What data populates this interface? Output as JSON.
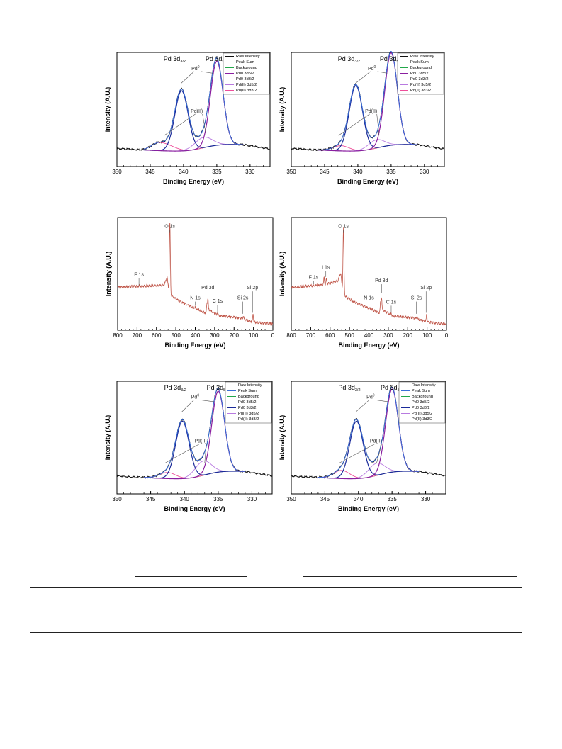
{
  "chart_data": [
    {
      "id": "p1",
      "type": "line",
      "kind": "xps_pd3d",
      "ylabel": "Intensity (A.U.)",
      "xlabel": "Binding Energy (eV)",
      "xlim": [
        350,
        327
      ],
      "ylim": [
        0,
        1.1
      ],
      "xticks": [
        350,
        345,
        340,
        335,
        330
      ],
      "base_left": 0.28,
      "base_right": 0.1,
      "peak_labels": [
        "Pd 3d",
        "3/2",
        "Pd 3d",
        "5/2"
      ],
      "annotations": [
        {
          "label": "Pd",
          "sup": "0",
          "at": [
            338.2,
            0.93
          ],
          "targets": [
            [
              340.4,
              0.8
            ],
            [
              335.6,
              0.9
            ]
          ]
        },
        {
          "label": "Pd(II)",
          "at": [
            338.0,
            0.52
          ],
          "targets": [
            [
              342.9,
              0.3
            ],
            [
              336.6,
              0.3
            ]
          ]
        }
      ],
      "peaks": {
        "pd0_52": {
          "x0": 335.0,
          "h": 0.81,
          "w": 0.95
        },
        "pd0_32": {
          "x0": 340.3,
          "h": 0.58,
          "w": 1.0
        },
        "pd2_52": {
          "x0": 337.0,
          "h": 0.1,
          "w": 1.3
        },
        "pd2_32": {
          "x0": 342.4,
          "h": 0.05,
          "w": 1.3
        },
        "sat": {
          "x0": 344.0,
          "h": 0.05,
          "w": 1.0
        }
      },
      "legend": [
        "Raw Intensity",
        "Peak Sum",
        "Background",
        "Pd0 3d5/2",
        "Pd0 3d3/2",
        "Pd(II) 3d5/2",
        "Pd(II) 3d3/2"
      ]
    },
    {
      "id": "p2",
      "type": "line",
      "kind": "xps_pd3d",
      "ylabel": "Intensity (A.U.)",
      "xlabel": "Binding Energy (eV)",
      "xlim": [
        350,
        327
      ],
      "ylim": [
        0,
        1.1
      ],
      "xticks": [
        350,
        345,
        340,
        335,
        330
      ],
      "base_left": 0.28,
      "base_right": 0.1,
      "peak_labels": [
        "Pd 3d",
        "3/2",
        "Pd 3d",
        "5/2"
      ],
      "annotations": [
        {
          "label": "Pd",
          "sup": "0",
          "at": [
            337.9,
            0.93
          ],
          "targets": [
            [
              340.4,
              0.8
            ],
            [
              335.6,
              0.9
            ]
          ]
        },
        {
          "label": "Pd(II)",
          "at": [
            338.0,
            0.52
          ],
          "targets": [
            [
              342.9,
              0.3
            ],
            [
              336.8,
              0.3
            ]
          ]
        }
      ],
      "peaks": {
        "pd0_52": {
          "x0": 335.0,
          "h": 0.89,
          "w": 0.95
        },
        "pd0_32": {
          "x0": 340.3,
          "h": 0.63,
          "w": 1.0
        },
        "pd2_52": {
          "x0": 337.2,
          "h": 0.08,
          "w": 1.2
        },
        "pd2_32": {
          "x0": 342.5,
          "h": 0.05,
          "w": 1.2
        },
        "sat": {
          "x0": 344.0,
          "h": 0.0,
          "w": 1.0
        }
      },
      "legend": [
        "Raw Intensity",
        "Peak Sum",
        "Background",
        "Pd0 3d5/2",
        "Pd0 3d3/2",
        "Pd(II) 3d5/2",
        "Pd(II) 3d3/2"
      ]
    },
    {
      "id": "p3",
      "type": "line",
      "kind": "xps_survey",
      "ylabel": "Intensity (A.U.)",
      "xlabel": "Binding Energy (eV)",
      "xlim": [
        800,
        0
      ],
      "ylim": [
        0,
        1.1
      ],
      "xticks": [
        800,
        700,
        600,
        500,
        400,
        300,
        200,
        100,
        0
      ],
      "color": "#c0574a",
      "steps": [
        [
          800,
          0.42
        ],
        [
          560,
          0.44
        ],
        [
          545,
          0.52
        ],
        [
          535,
          0.35
        ],
        [
          480,
          0.28
        ],
        [
          420,
          0.23
        ],
        [
          337,
          0.16
        ],
        [
          330,
          0.2
        ],
        [
          280,
          0.14
        ],
        [
          170,
          0.12
        ],
        [
          100,
          0.08
        ],
        [
          0,
          0.06
        ]
      ],
      "lines": [
        {
          "x": 531,
          "h": 0.7,
          "w": 2.5
        },
        {
          "x": 335,
          "h": 0.14,
          "w": 2.0
        },
        {
          "x": 340,
          "h": 0.1,
          "w": 2.0
        },
        {
          "x": 285,
          "h": 0.03,
          "w": 2.0
        },
        {
          "x": 152,
          "h": 0.03,
          "w": 2.0
        },
        {
          "x": 102,
          "h": 0.08,
          "w": 2.0
        },
        {
          "x": 400,
          "h": 0.01,
          "w": 2.0
        },
        {
          "x": 686,
          "h": 0.01,
          "w": 2.0
        }
      ],
      "labels": [
        {
          "text": "O 1s",
          "x": 531,
          "y": 1.0,
          "line_to": 0.95
        },
        {
          "text": "F 1s",
          "x": 690,
          "y": 0.53,
          "line_to": 0.44
        },
        {
          "text": "Pd 3d",
          "x": 335,
          "y": 0.4,
          "line_to": 0.32
        },
        {
          "text": "N 1s",
          "x": 400,
          "y": 0.3,
          "line_to": 0.24
        },
        {
          "text": "C 1s",
          "x": 285,
          "y": 0.27,
          "line_to": 0.17
        },
        {
          "text": "Si 2s",
          "x": 155,
          "y": 0.3,
          "line_to": 0.16
        },
        {
          "text": "Si 2p",
          "x": 105,
          "y": 0.4,
          "line_to": 0.17
        }
      ]
    },
    {
      "id": "p4",
      "type": "line",
      "kind": "xps_survey",
      "ylabel": "Intensity (A.U.)",
      "xlabel": "Binding Energy (eV)",
      "xlim": [
        800,
        0
      ],
      "ylim": [
        0,
        1.1
      ],
      "xticks": [
        800,
        700,
        600,
        500,
        400,
        300,
        200,
        100,
        0
      ],
      "color": "#c0574a",
      "steps": [
        [
          800,
          0.42
        ],
        [
          640,
          0.44
        ],
        [
          560,
          0.48
        ],
        [
          545,
          0.56
        ],
        [
          535,
          0.35
        ],
        [
          480,
          0.28
        ],
        [
          420,
          0.23
        ],
        [
          337,
          0.16
        ],
        [
          330,
          0.2
        ],
        [
          280,
          0.14
        ],
        [
          170,
          0.12
        ],
        [
          100,
          0.08
        ],
        [
          0,
          0.06
        ]
      ],
      "lines": [
        {
          "x": 531,
          "h": 0.66,
          "w": 2.5
        },
        {
          "x": 619,
          "h": 0.05,
          "w": 2.0
        },
        {
          "x": 631,
          "h": 0.07,
          "w": 2.0
        },
        {
          "x": 335,
          "h": 0.15,
          "w": 2.0
        },
        {
          "x": 340,
          "h": 0.11,
          "w": 2.0
        },
        {
          "x": 285,
          "h": 0.03,
          "w": 2.0
        },
        {
          "x": 152,
          "h": 0.03,
          "w": 2.0
        },
        {
          "x": 102,
          "h": 0.08,
          "w": 2.0
        }
      ],
      "labels": [
        {
          "text": "O 1s",
          "x": 531,
          "y": 1.0,
          "line_to": 0.95
        },
        {
          "text": "I 1s",
          "x": 622,
          "y": 0.6,
          "line_to": 0.52
        },
        {
          "text": "F 1s",
          "x": 685,
          "y": 0.5,
          "line_to": 0.45
        },
        {
          "text": "Pd 3d",
          "x": 335,
          "y": 0.47,
          "line_to": 0.36
        },
        {
          "text": "N 1s",
          "x": 400,
          "y": 0.3,
          "line_to": 0.24
        },
        {
          "text": "C 1s",
          "x": 285,
          "y": 0.26,
          "line_to": 0.17
        },
        {
          "text": "Si 2s",
          "x": 155,
          "y": 0.3,
          "line_to": 0.16
        },
        {
          "text": "Si 2p",
          "x": 105,
          "y": 0.4,
          "line_to": 0.17
        }
      ]
    },
    {
      "id": "p5",
      "type": "line",
      "kind": "xps_pd3d",
      "ylabel": "Intensity (A.U.)",
      "xlabel": "Binding Energy (eV)",
      "xlim": [
        350,
        327
      ],
      "ylim": [
        0,
        1.1
      ],
      "xticks": [
        350,
        345,
        340,
        335,
        330
      ],
      "base_left": 0.3,
      "base_right": 0.09,
      "peak_labels": [
        "Pd 3d",
        "3/2",
        "Pd 3d",
        "5/2"
      ],
      "annotations": [
        {
          "label": "Pd",
          "sup": "0",
          "at": [
            338.4,
            0.93
          ],
          "targets": [
            [
              340.4,
              0.8
            ],
            [
              335.6,
              0.9
            ]
          ]
        },
        {
          "label": "Pd(II)",
          "at": [
            337.6,
            0.5
          ],
          "targets": [
            [
              342.9,
              0.3
            ],
            [
              337.0,
              0.3
            ]
          ]
        }
      ],
      "peaks": {
        "pd0_52": {
          "x0": 335.0,
          "h": 0.79,
          "w": 0.95
        },
        "pd0_32": {
          "x0": 340.3,
          "h": 0.56,
          "w": 1.0
        },
        "pd2_52": {
          "x0": 337.2,
          "h": 0.14,
          "w": 1.2
        },
        "pd2_32": {
          "x0": 342.5,
          "h": 0.06,
          "w": 1.2
        },
        "sat": {
          "x0": 344.0,
          "h": 0.0,
          "w": 1.0
        }
      },
      "legend": [
        "Raw Intensity",
        "Peak Sum",
        "Background",
        "Pd0 3d5/2",
        "Pd0 3d3/2",
        "Pd(II) 3d5/2",
        "Pd(II) 3d3/2"
      ]
    },
    {
      "id": "p6",
      "type": "line",
      "kind": "xps_pd3d",
      "ylabel": "Intensity (A.U.)",
      "xlabel": "Binding Energy (eV)",
      "xlim": [
        350,
        327
      ],
      "ylim": [
        0,
        1.1
      ],
      "xticks": [
        350,
        345,
        340,
        335,
        330
      ],
      "base_left": 0.3,
      "base_right": 0.09,
      "peak_labels": [
        "Pd 3d",
        "3/2",
        "Pd 3d",
        "5/2"
      ],
      "annotations": [
        {
          "label": "Pd",
          "sup": "0",
          "at": [
            338.2,
            0.93
          ],
          "targets": [
            [
              340.4,
              0.8
            ],
            [
              335.6,
              0.9
            ]
          ]
        },
        {
          "label": "Pd(II)",
          "at": [
            337.4,
            0.5
          ],
          "targets": [
            [
              342.9,
              0.3
            ],
            [
              337.3,
              0.3
            ]
          ]
        }
      ],
      "peaks": {
        "pd0_52": {
          "x0": 335.0,
          "h": 0.81,
          "w": 0.95
        },
        "pd0_32": {
          "x0": 340.3,
          "h": 0.56,
          "w": 1.0
        },
        "pd2_52": {
          "x0": 337.3,
          "h": 0.12,
          "w": 1.2
        },
        "pd2_32": {
          "x0": 342.5,
          "h": 0.08,
          "w": 1.2
        },
        "sat": {
          "x0": 344.0,
          "h": 0.0,
          "w": 1.0
        }
      },
      "legend": [
        "Raw Intensity",
        "Peak Sum",
        "Background",
        "Pd0 3d5/2",
        "Pd0 3d3/2",
        "Pd(II) 3d5/2",
        "Pd(II) 3d3/2"
      ]
    }
  ],
  "colors": {
    "raw": "#111111",
    "sum": "#3a6fd8",
    "background": "#22a84a",
    "pd0_52": "#8a1fa0",
    "pd0_32": "#1a2a9a",
    "pd2_52": "#b87ae0",
    "pd2_32": "#ee4f9a",
    "survey": "#c0574a"
  }
}
